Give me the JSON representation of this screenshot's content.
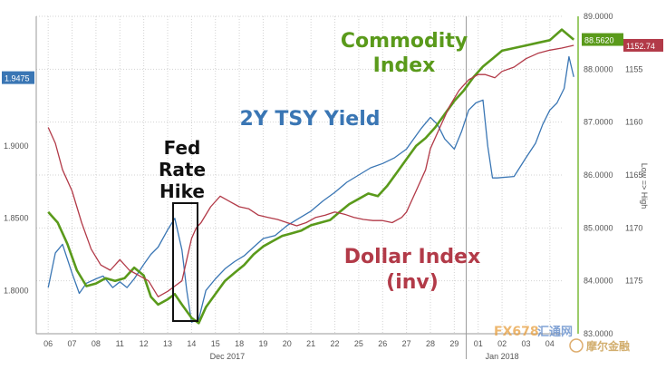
{
  "chart_data": {
    "type": "line",
    "x_ticks": [
      "06",
      "07",
      "08",
      "11",
      "12",
      "13",
      "14",
      "15",
      "18",
      "19",
      "20",
      "21",
      "22",
      "25",
      "26",
      "27",
      "28",
      "29",
      "01",
      "02",
      "03",
      "04"
    ],
    "x_group_labels": [
      "Dec 2017",
      "Jan 2018"
    ],
    "y_left": {
      "range": [
        1.77,
        1.99
      ],
      "ticks": [
        "1.8000",
        "1.8500",
        "1.9000"
      ],
      "last_value": "1.9475"
    },
    "y_mid": {
      "range": [
        83.0,
        89.0
      ],
      "ticks": [
        "83.0000",
        "84.0000",
        "85.0000",
        "86.0000",
        "87.0000",
        "88.0000",
        "89.0000"
      ],
      "last_value": "88.5620"
    },
    "y_right": {
      "inverted": true,
      "range": [
        1150,
        1180
      ],
      "ticks": [
        "1155",
        "1160",
        "1165",
        "1170",
        "1175"
      ],
      "last_value": "1152.74",
      "label": "Low => High"
    },
    "series": [
      {
        "name": "2Y TSY Yield",
        "color": "#3a76b4",
        "axis": "left",
        "points": [
          [
            0,
            1.802
          ],
          [
            0.3,
            1.826
          ],
          [
            0.6,
            1.832
          ],
          [
            1.0,
            1.812
          ],
          [
            1.3,
            1.798
          ],
          [
            1.6,
            1.805
          ],
          [
            2.0,
            1.808
          ],
          [
            2.3,
            1.81
          ],
          [
            2.7,
            1.802
          ],
          [
            3.0,
            1.806
          ],
          [
            3.3,
            1.802
          ],
          [
            3.6,
            1.808
          ],
          [
            4.0,
            1.818
          ],
          [
            4.3,
            1.825
          ],
          [
            4.6,
            1.83
          ],
          [
            5.0,
            1.842
          ],
          [
            5.3,
            1.85
          ],
          [
            5.6,
            1.828
          ],
          [
            5.8,
            1.8
          ],
          [
            6.0,
            1.778
          ],
          [
            6.3,
            1.78
          ],
          [
            6.6,
            1.8
          ],
          [
            7.0,
            1.808
          ],
          [
            7.4,
            1.815
          ],
          [
            7.8,
            1.82
          ],
          [
            8.2,
            1.824
          ],
          [
            8.6,
            1.83
          ],
          [
            9.0,
            1.836
          ],
          [
            9.5,
            1.838
          ],
          [
            10.0,
            1.845
          ],
          [
            10.5,
            1.85
          ],
          [
            11.0,
            1.855
          ],
          [
            11.5,
            1.862
          ],
          [
            12.0,
            1.868
          ],
          [
            12.5,
            1.875
          ],
          [
            13.0,
            1.88
          ],
          [
            13.5,
            1.885
          ],
          [
            14.0,
            1.888
          ],
          [
            14.5,
            1.892
          ],
          [
            15.0,
            1.898
          ],
          [
            15.3,
            1.905
          ],
          [
            15.6,
            1.912
          ],
          [
            16.0,
            1.92
          ],
          [
            16.3,
            1.915
          ],
          [
            16.6,
            1.905
          ],
          [
            17.0,
            1.898
          ],
          [
            17.3,
            1.91
          ],
          [
            17.6,
            1.925
          ],
          [
            17.9,
            1.93
          ],
          [
            18.2,
            1.932
          ],
          [
            18.4,
            1.9
          ],
          [
            18.6,
            1.878
          ],
          [
            18.8,
            1.878
          ],
          [
            19.5,
            1.879
          ],
          [
            20.0,
            1.892
          ],
          [
            20.4,
            1.902
          ],
          [
            20.7,
            1.915
          ],
          [
            21.0,
            1.925
          ],
          [
            21.3,
            1.93
          ],
          [
            21.6,
            1.94
          ],
          [
            21.8,
            1.962
          ],
          [
            22.0,
            1.948
          ]
        ]
      },
      {
        "name": "Commodity Index",
        "color": "#5a9a1b",
        "axis": "mid",
        "points": [
          [
            0,
            85.3
          ],
          [
            0.4,
            85.1
          ],
          [
            0.8,
            84.7
          ],
          [
            1.2,
            84.2
          ],
          [
            1.6,
            83.9
          ],
          [
            2.0,
            83.95
          ],
          [
            2.4,
            84.05
          ],
          [
            2.8,
            84.0
          ],
          [
            3.2,
            84.05
          ],
          [
            3.6,
            84.25
          ],
          [
            4.0,
            84.1
          ],
          [
            4.3,
            83.7
          ],
          [
            4.6,
            83.55
          ],
          [
            5.0,
            83.65
          ],
          [
            5.3,
            83.75
          ],
          [
            5.6,
            83.55
          ],
          [
            6.0,
            83.3
          ],
          [
            6.3,
            83.2
          ],
          [
            6.6,
            83.5
          ],
          [
            7.0,
            83.75
          ],
          [
            7.4,
            84.0
          ],
          [
            7.8,
            84.15
          ],
          [
            8.2,
            84.3
          ],
          [
            8.6,
            84.5
          ],
          [
            9.0,
            84.65
          ],
          [
            9.4,
            84.75
          ],
          [
            9.8,
            84.85
          ],
          [
            10.2,
            84.9
          ],
          [
            10.6,
            84.95
          ],
          [
            11.0,
            85.05
          ],
          [
            11.4,
            85.1
          ],
          [
            11.8,
            85.15
          ],
          [
            12.2,
            85.3
          ],
          [
            12.6,
            85.45
          ],
          [
            13.0,
            85.55
          ],
          [
            13.4,
            85.65
          ],
          [
            13.8,
            85.6
          ],
          [
            14.2,
            85.8
          ],
          [
            14.6,
            86.05
          ],
          [
            15.0,
            86.3
          ],
          [
            15.4,
            86.55
          ],
          [
            15.8,
            86.7
          ],
          [
            16.2,
            86.9
          ],
          [
            16.6,
            87.15
          ],
          [
            17.0,
            87.4
          ],
          [
            17.4,
            87.6
          ],
          [
            17.8,
            87.85
          ],
          [
            18.2,
            88.05
          ],
          [
            18.6,
            88.2
          ],
          [
            19.0,
            88.35
          ],
          [
            19.5,
            88.4
          ],
          [
            20.0,
            88.45
          ],
          [
            20.5,
            88.5
          ],
          [
            21.0,
            88.55
          ],
          [
            21.5,
            88.75
          ],
          [
            22.0,
            88.56
          ]
        ]
      },
      {
        "name": "Dollar Index (inv)",
        "color": "#b23a48",
        "axis": "right",
        "points": [
          [
            0,
            1160.5
          ],
          [
            0.3,
            1162.0
          ],
          [
            0.6,
            1164.5
          ],
          [
            1.0,
            1166.5
          ],
          [
            1.4,
            1169.5
          ],
          [
            1.8,
            1172.0
          ],
          [
            2.2,
            1173.5
          ],
          [
            2.6,
            1174.0
          ],
          [
            3.0,
            1173.0
          ],
          [
            3.4,
            1174.0
          ],
          [
            3.8,
            1174.5
          ],
          [
            4.2,
            1175.0
          ],
          [
            4.6,
            1176.5
          ],
          [
            5.0,
            1176.0
          ],
          [
            5.3,
            1175.5
          ],
          [
            5.6,
            1175.0
          ],
          [
            5.8,
            1173.0
          ],
          [
            6.0,
            1171.0
          ],
          [
            6.2,
            1170.0
          ],
          [
            6.4,
            1169.5
          ],
          [
            6.8,
            1168.0
          ],
          [
            7.2,
            1167.0
          ],
          [
            7.6,
            1167.5
          ],
          [
            8.0,
            1168.0
          ],
          [
            8.4,
            1168.2
          ],
          [
            8.8,
            1168.8
          ],
          [
            9.2,
            1169.0
          ],
          [
            9.6,
            1169.2
          ],
          [
            10.0,
            1169.5
          ],
          [
            10.4,
            1169.8
          ],
          [
            10.8,
            1169.5
          ],
          [
            11.2,
            1169.0
          ],
          [
            11.6,
            1168.8
          ],
          [
            12.0,
            1168.5
          ],
          [
            12.4,
            1168.7
          ],
          [
            12.8,
            1169.0
          ],
          [
            13.2,
            1169.2
          ],
          [
            13.6,
            1169.3
          ],
          [
            14.0,
            1169.3
          ],
          [
            14.4,
            1169.5
          ],
          [
            14.8,
            1169.0
          ],
          [
            15.0,
            1168.5
          ],
          [
            15.4,
            1166.5
          ],
          [
            15.8,
            1164.5
          ],
          [
            16.0,
            1162.5
          ],
          [
            16.4,
            1160.5
          ],
          [
            16.8,
            1158.5
          ],
          [
            17.2,
            1157.0
          ],
          [
            17.6,
            1156.0
          ],
          [
            18.0,
            1155.5
          ],
          [
            18.3,
            1155.5
          ],
          [
            18.7,
            1155.8
          ],
          [
            19.0,
            1155.2
          ],
          [
            19.5,
            1154.8
          ],
          [
            20.0,
            1154.0
          ],
          [
            20.5,
            1153.5
          ],
          [
            21.0,
            1153.2
          ],
          [
            21.5,
            1153.0
          ],
          [
            22.0,
            1152.74
          ]
        ]
      }
    ],
    "annotations": [
      {
        "text": "Commodity Index",
        "color": "#5a9a1b"
      },
      {
        "text": "2Y TSY Yield",
        "color": "#3a76b4"
      },
      {
        "text": "Fed Rate Hike",
        "color": "#111111"
      },
      {
        "text": "Dollar Index (inv)",
        "color": "#b23a48"
      }
    ],
    "grid": true
  },
  "labels": {
    "commodity_1": "Commodity",
    "commodity_2": "Index",
    "tsy": "2Y TSY Yield",
    "fed_1": "Fed",
    "fed_2": "Rate",
    "fed_3": "Hike",
    "dollar_1": "Dollar Index",
    "dollar_2": "(inv)",
    "watermark_1": "FX678",
    "watermark_2": "汇通网",
    "watermark_3": "摩尔金融"
  }
}
